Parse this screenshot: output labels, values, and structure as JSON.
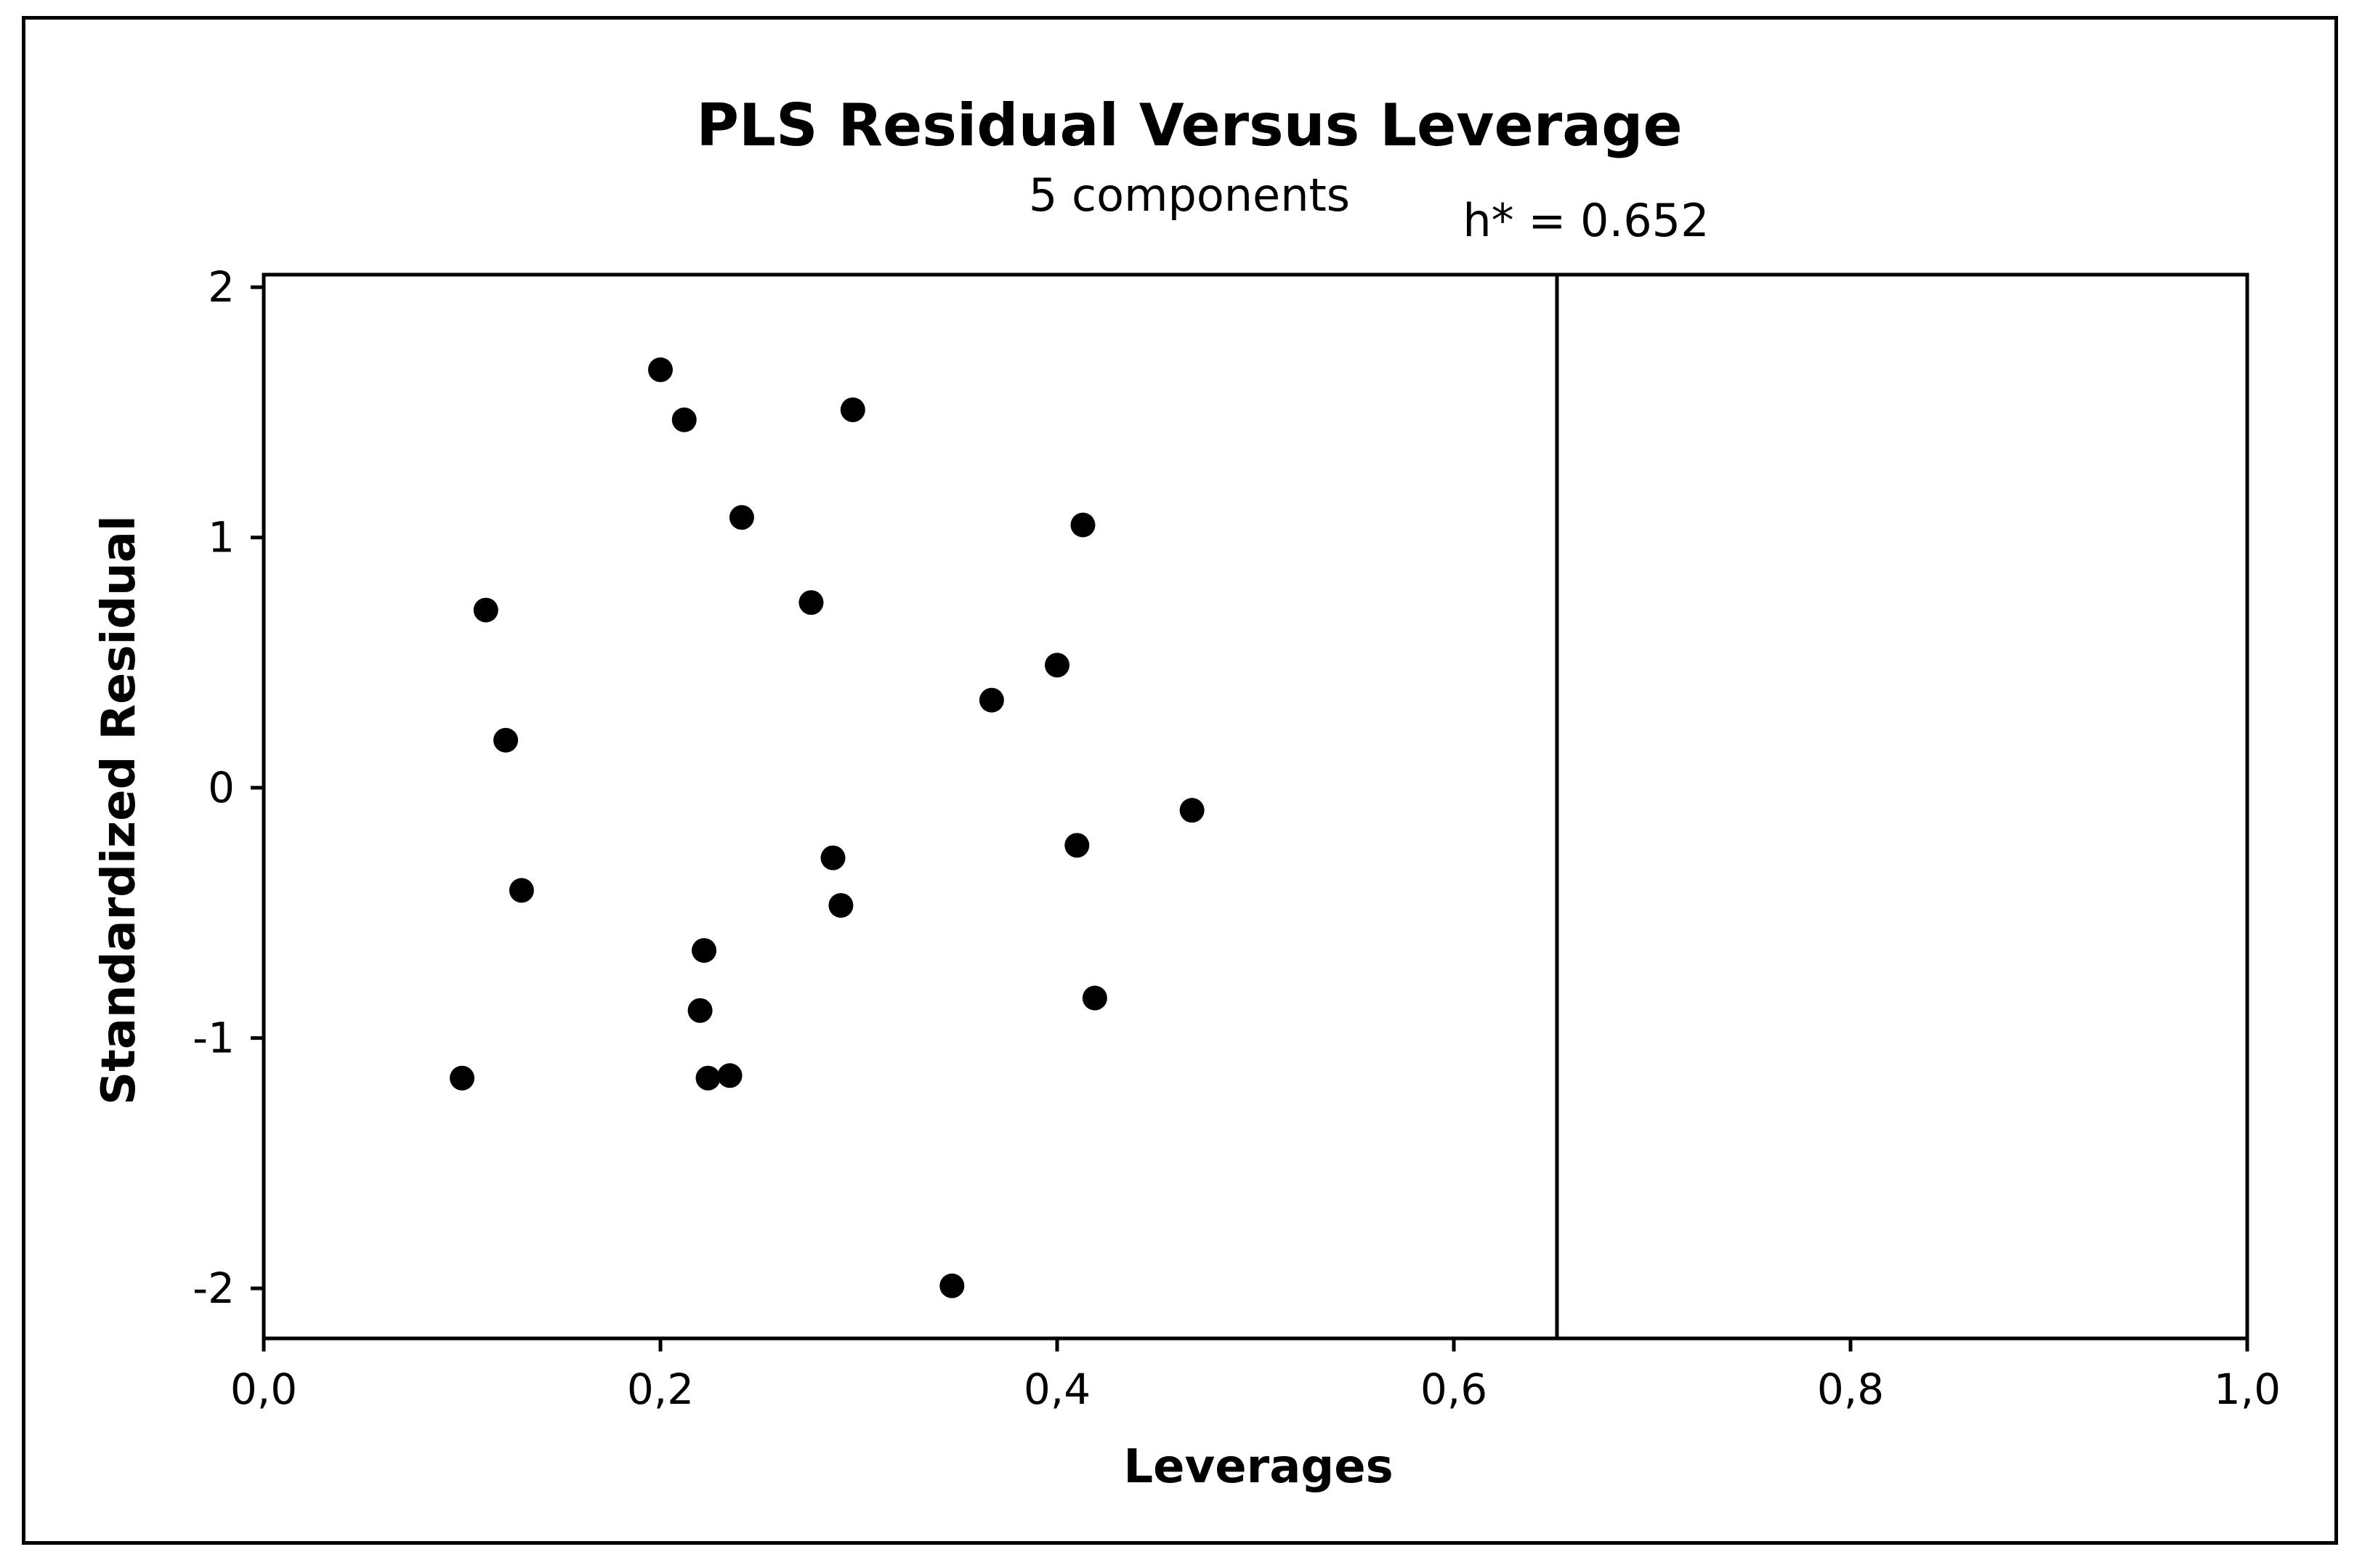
{
  "chart_data": {
    "type": "scatter",
    "title": "PLS Residual Versus Leverage",
    "subtitle": "5 components",
    "xlabel": "Leverages",
    "ylabel": "Standardized Residual",
    "xlim": [
      0.0,
      1.0
    ],
    "ylim": [
      -2.2,
      2.05
    ],
    "x_ticks": [
      0.0,
      0.2,
      0.4,
      0.6,
      0.8,
      1.0
    ],
    "x_tick_labels": [
      "0,0",
      "0,2",
      "0,4",
      "0,6",
      "0,8",
      "1,0"
    ],
    "y_ticks": [
      2,
      1,
      0,
      -1,
      -2
    ],
    "y_tick_labels": [
      "2",
      "1",
      "0",
      "-1",
      "-2"
    ],
    "reference_line": {
      "x": 0.652,
      "label": "h* = 0.652"
    },
    "grid": false,
    "marker_color": "#000000",
    "points": [
      {
        "x": 0.2,
        "y": 1.67
      },
      {
        "x": 0.212,
        "y": 1.47
      },
      {
        "x": 0.297,
        "y": 1.51
      },
      {
        "x": 0.241,
        "y": 1.08
      },
      {
        "x": 0.413,
        "y": 1.05
      },
      {
        "x": 0.112,
        "y": 0.71
      },
      {
        "x": 0.276,
        "y": 0.74
      },
      {
        "x": 0.4,
        "y": 0.49
      },
      {
        "x": 0.367,
        "y": 0.35
      },
      {
        "x": 0.122,
        "y": 0.19
      },
      {
        "x": 0.468,
        "y": -0.09
      },
      {
        "x": 0.41,
        "y": -0.23
      },
      {
        "x": 0.287,
        "y": -0.28
      },
      {
        "x": 0.291,
        "y": -0.47
      },
      {
        "x": 0.13,
        "y": -0.41
      },
      {
        "x": 0.222,
        "y": -0.65
      },
      {
        "x": 0.419,
        "y": -0.84
      },
      {
        "x": 0.22,
        "y": -0.89
      },
      {
        "x": 0.1,
        "y": -1.16
      },
      {
        "x": 0.224,
        "y": -1.16
      },
      {
        "x": 0.235,
        "y": -1.15
      },
      {
        "x": 0.347,
        "y": -1.99
      }
    ]
  }
}
